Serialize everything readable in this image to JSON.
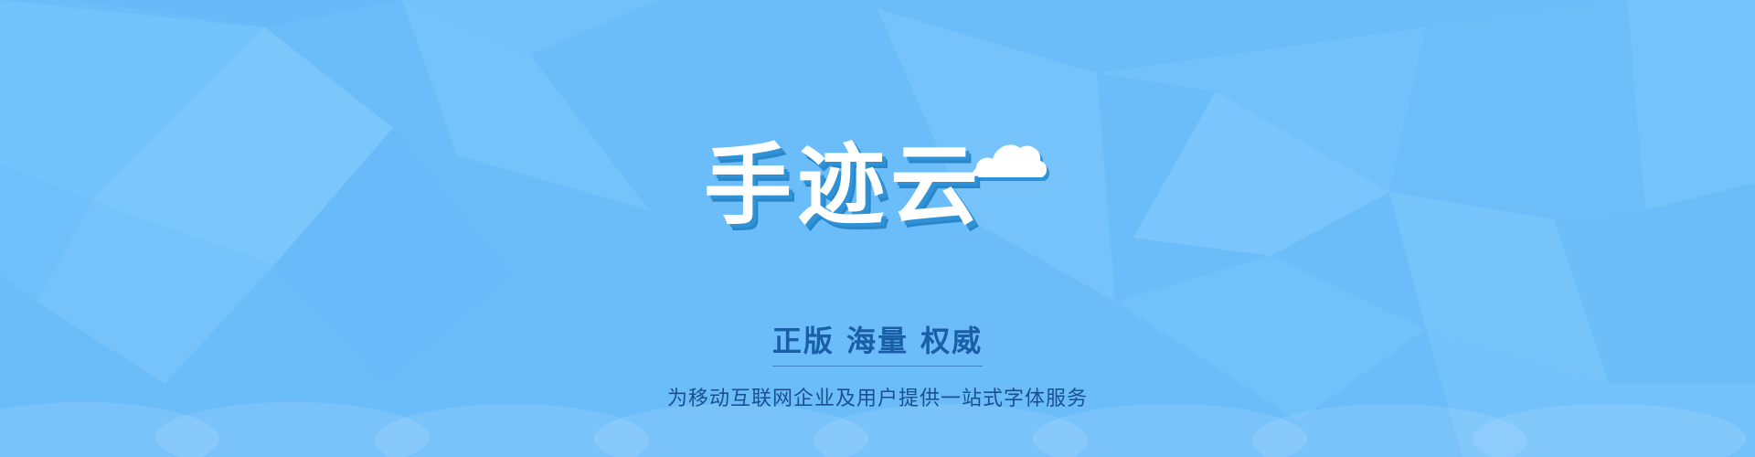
{
  "banner": {
    "logo_text": "手迹云",
    "tagline": "正版 海量 权威",
    "subtitle": "为移动互联网企业及用户提供一站式字体服务"
  },
  "colors": {
    "background": "#6bbdfa",
    "logo_shadow": "#2f92d6",
    "tagline": "#1a5ea8",
    "subtitle": "#1b4f8f"
  }
}
